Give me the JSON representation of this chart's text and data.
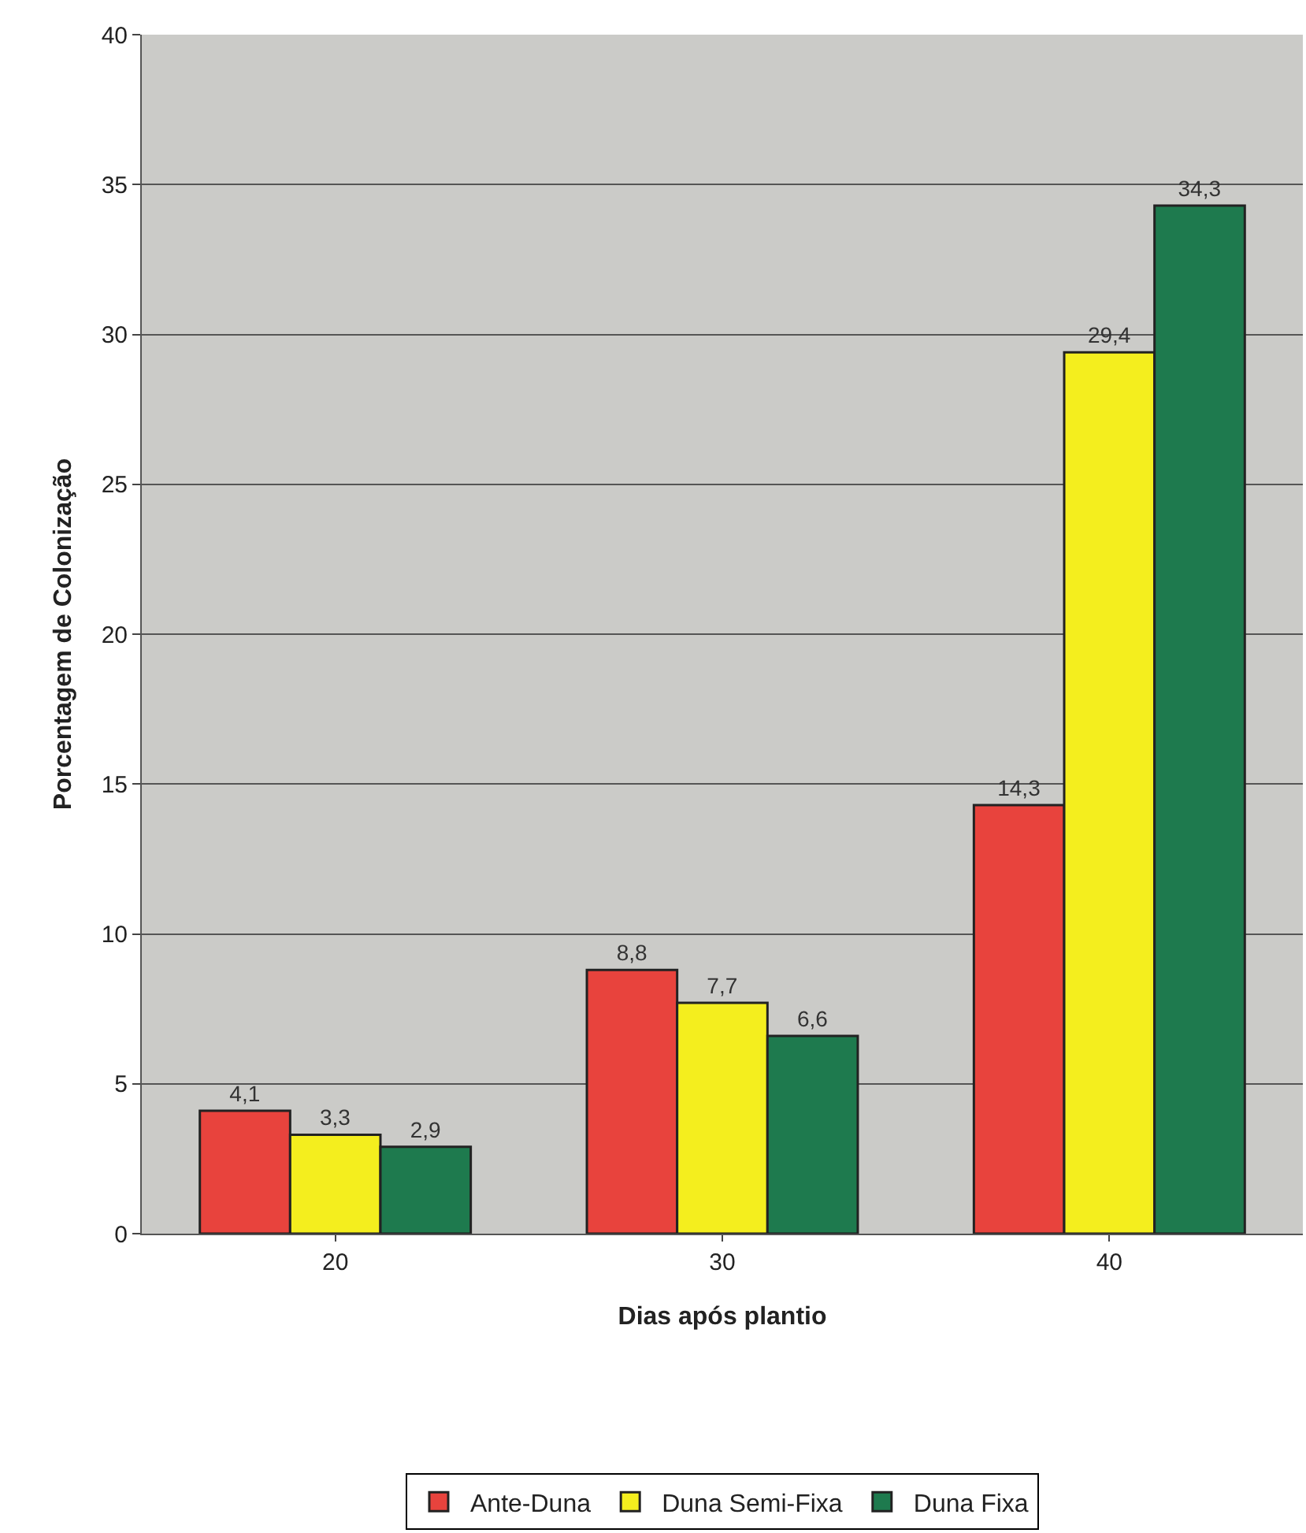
{
  "chart_data": {
    "type": "bar",
    "xlabel": "Dias após plantio",
    "ylabel": "Porcentagem de Colonização",
    "categories": [
      "20",
      "30",
      "40"
    ],
    "series": [
      {
        "name": "Ante-Duna",
        "color": "#e8433d",
        "values": [
          4.1,
          8.8,
          14.3
        ],
        "value_labels": [
          "4,1",
          "8,8",
          "14,3"
        ]
      },
      {
        "name": "Duna Semi-Fixa",
        "color": "#f4ee1e",
        "values": [
          3.3,
          7.7,
          29.4
        ],
        "value_labels": [
          "3,3",
          "7,7",
          "29,4"
        ]
      },
      {
        "name": "Duna Fixa",
        "color": "#1e7a4e",
        "values": [
          2.9,
          6.6,
          34.3
        ],
        "value_labels": [
          "2,9",
          "6,6",
          "34,3"
        ]
      }
    ],
    "ylim": [
      0,
      40
    ],
    "yticks": [
      0,
      5,
      10,
      15,
      20,
      25,
      30,
      35,
      40
    ],
    "grid": "y",
    "legend": "bottom"
  }
}
